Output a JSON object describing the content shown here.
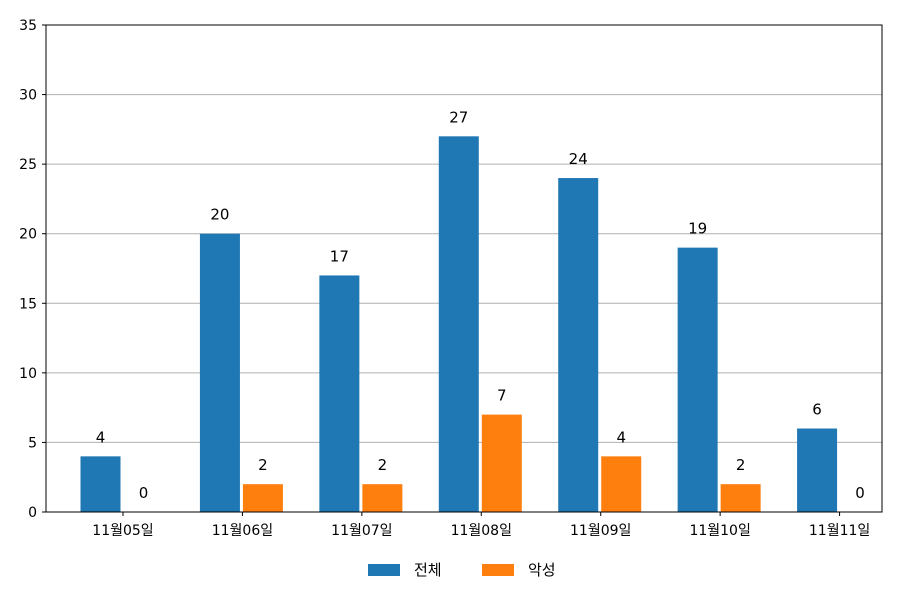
{
  "chart_data": {
    "type": "bar",
    "categories": [
      "11월05일",
      "11월06일",
      "11월07일",
      "11월08일",
      "11월09일",
      "11월10일",
      "11월11일"
    ],
    "series": [
      {
        "name": "전체",
        "color": "#1f77b4",
        "values": [
          4,
          20,
          17,
          27,
          24,
          19,
          6
        ]
      },
      {
        "name": "악성",
        "color": "#ff7f0e",
        "values": [
          0,
          2,
          2,
          7,
          4,
          2,
          0
        ]
      }
    ],
    "ylim": [
      0,
      35
    ],
    "yticks": [
      0,
      5,
      10,
      15,
      20,
      25,
      30,
      35
    ],
    "grid": "horizontal",
    "legend_position": "bottom-center",
    "data_labels": true
  }
}
